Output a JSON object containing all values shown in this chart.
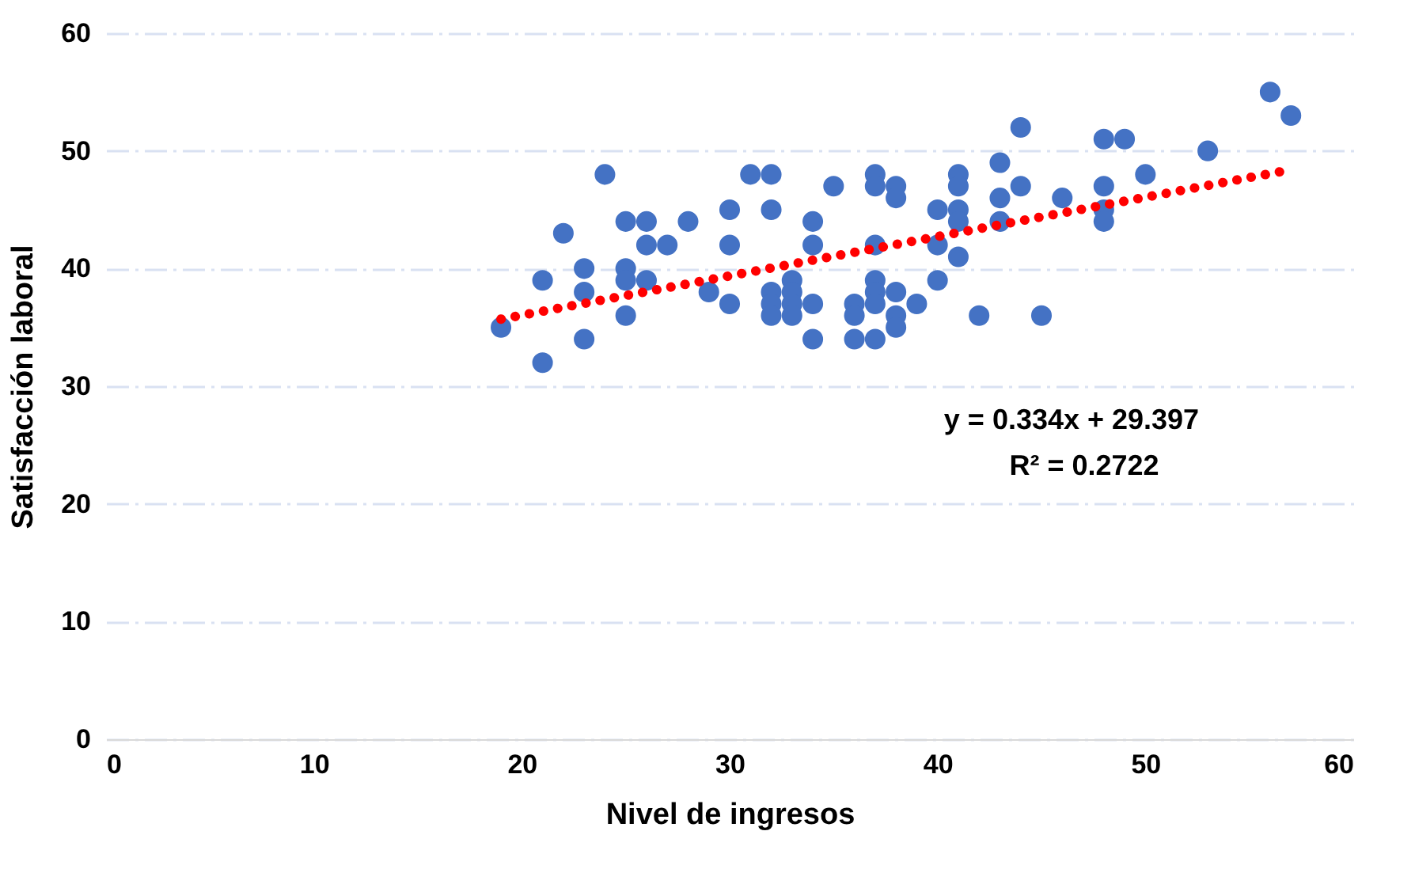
{
  "chart_data": {
    "type": "scatter",
    "xlabel": "Nivel de ingresos",
    "ylabel": "Satisfacción laboral",
    "xlim": [
      0,
      60
    ],
    "xticks": [
      0,
      10,
      20,
      30,
      40,
      50,
      60
    ],
    "ylim": [
      0,
      60
    ],
    "yticks": [
      0,
      10,
      20,
      30,
      40,
      50,
      60
    ],
    "grid": "y",
    "annotations": [
      "y = 0.334x + 29.397",
      "R² = 0.2722"
    ],
    "series": [
      {
        "color": "#4472c4",
        "marker": "circle",
        "x": [
          19,
          21,
          21,
          22,
          23,
          23,
          23,
          24,
          25,
          25,
          25,
          25,
          26,
          26,
          26,
          27,
          28,
          29,
          30,
          30,
          30,
          31,
          32,
          32,
          32,
          32,
          32,
          33,
          33,
          33,
          33,
          34,
          34,
          34,
          34,
          35,
          36,
          36,
          36,
          37,
          37,
          37,
          37,
          37,
          37,
          37,
          38,
          38,
          38,
          38,
          38,
          39,
          40,
          40,
          40,
          41,
          41,
          41,
          41,
          41,
          42,
          43,
          43,
          43,
          44,
          44,
          45,
          46,
          48,
          48,
          48,
          48,
          49,
          50,
          53,
          56,
          57
        ],
        "values": [
          35,
          39,
          32,
          43,
          40,
          38,
          34,
          48,
          44,
          40,
          39,
          36,
          44,
          42,
          39,
          42,
          44,
          38,
          45,
          42,
          37,
          48,
          48,
          45,
          38,
          37,
          36,
          39,
          38,
          37,
          36,
          44,
          42,
          37,
          34,
          47,
          37,
          36,
          34,
          48,
          47,
          42,
          39,
          38,
          37,
          34,
          47,
          46,
          38,
          36,
          35,
          37,
          45,
          42,
          39,
          48,
          47,
          45,
          44,
          41,
          36,
          49,
          46,
          44,
          52,
          47,
          36,
          46,
          51,
          47,
          45,
          44,
          51,
          48,
          50,
          55,
          53
        ]
      },
      {
        "type": "line",
        "color": "#ff0000",
        "line_style": "dotted",
        "x": [
          19,
          57
        ],
        "values": [
          35.7,
          48.4
        ]
      }
    ]
  }
}
